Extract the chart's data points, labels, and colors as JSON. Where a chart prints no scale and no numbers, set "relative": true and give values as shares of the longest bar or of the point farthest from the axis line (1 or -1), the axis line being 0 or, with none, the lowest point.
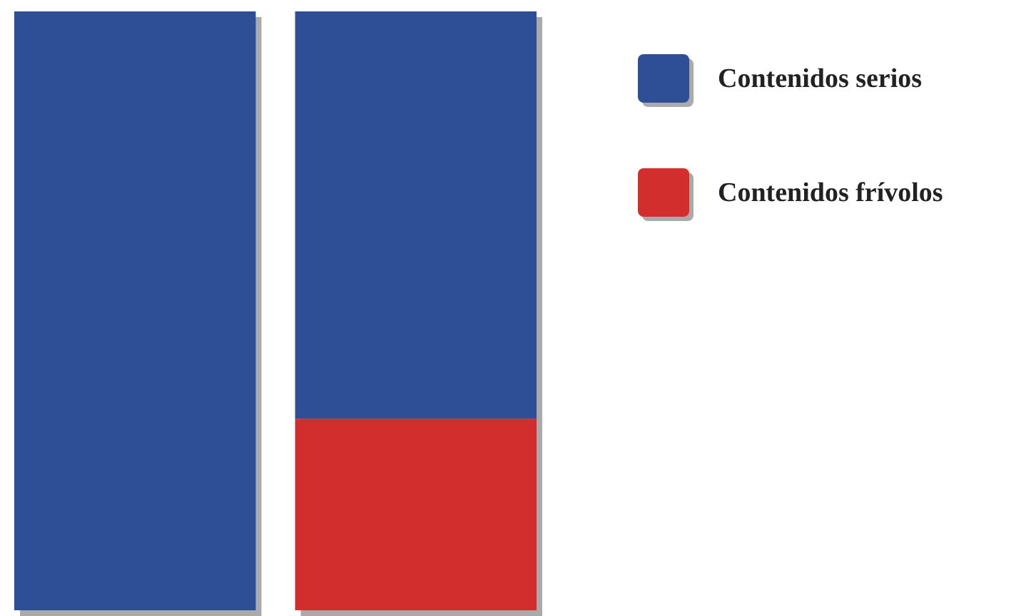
{
  "chart_data": {
    "type": "bar",
    "relative": true,
    "stacked": true,
    "categories": [
      null,
      null
    ],
    "legend": "top right",
    "series": [
      {
        "name": "Contenidos frívolos",
        "color": "#d32e2e",
        "values": [
          null,
          0.32
        ]
      },
      {
        "name": "Contenidos serios",
        "color": "#2e4f96",
        "values": [
          1,
          0.68
        ]
      }
    ]
  }
}
